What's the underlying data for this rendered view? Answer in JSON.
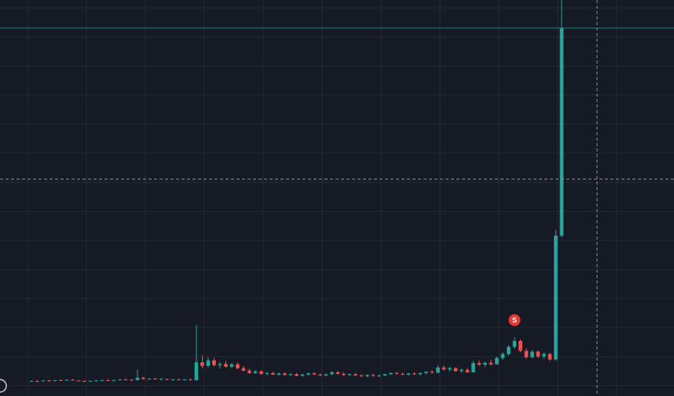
{
  "chart_data": {
    "type": "candlestick",
    "ylim": [
      0,
      100
    ],
    "up_color": "#26a69a",
    "down_color": "#ef5350",
    "annotation": "S",
    "candles": [
      [
        3.7,
        3.9,
        3.6,
        3.8
      ],
      [
        3.8,
        4.0,
        3.7,
        3.7
      ],
      [
        3.7,
        3.9,
        3.6,
        3.9
      ],
      [
        3.9,
        4.1,
        3.8,
        3.8
      ],
      [
        3.8,
        4.0,
        3.7,
        4.0
      ],
      [
        4.0,
        4.2,
        3.9,
        3.9
      ],
      [
        3.9,
        4.1,
        3.8,
        4.1
      ],
      [
        4.1,
        4.3,
        3.9,
        3.9
      ],
      [
        3.9,
        4.0,
        3.7,
        3.8
      ],
      [
        3.8,
        4.0,
        3.6,
        3.7
      ],
      [
        3.7,
        3.9,
        3.5,
        3.8
      ],
      [
        3.8,
        4.0,
        3.7,
        3.9
      ],
      [
        3.9,
        4.1,
        3.8,
        4.0
      ],
      [
        4.0,
        4.2,
        3.8,
        3.8
      ],
      [
        3.8,
        4.1,
        3.7,
        4.0
      ],
      [
        4.0,
        4.3,
        3.9,
        4.2
      ],
      [
        4.2,
        4.4,
        4.0,
        4.1
      ],
      [
        4.1,
        4.3,
        3.9,
        4.0
      ],
      [
        4.0,
        6.7,
        3.9,
        4.6
      ],
      [
        4.6,
        4.8,
        4.2,
        4.3
      ],
      [
        4.3,
        4.5,
        4.1,
        4.4
      ],
      [
        4.4,
        4.6,
        4.2,
        4.2
      ],
      [
        4.2,
        4.5,
        4.0,
        4.3
      ],
      [
        4.3,
        4.4,
        4.0,
        4.1
      ],
      [
        4.1,
        4.3,
        3.9,
        4.2
      ],
      [
        4.2,
        4.4,
        4.0,
        4.0
      ],
      [
        4.0,
        4.3,
        3.9,
        4.2
      ],
      [
        4.2,
        4.4,
        3.9,
        4.0
      ],
      [
        4.0,
        18.0,
        3.9,
        8.5
      ],
      [
        8.5,
        10.2,
        7.0,
        7.6
      ],
      [
        7.6,
        9.8,
        7.2,
        9.0
      ],
      [
        9.0,
        9.6,
        7.4,
        7.8
      ],
      [
        7.8,
        8.6,
        6.9,
        8.1
      ],
      [
        8.1,
        8.9,
        7.2,
        7.4
      ],
      [
        7.4,
        8.4,
        7.0,
        8.0
      ],
      [
        8.0,
        8.4,
        6.8,
        7.0
      ],
      [
        7.0,
        7.6,
        6.2,
        6.4
      ],
      [
        6.4,
        6.9,
        5.6,
        5.8
      ],
      [
        5.8,
        6.6,
        5.5,
        6.2
      ],
      [
        6.2,
        6.5,
        5.4,
        5.6
      ],
      [
        5.6,
        6.0,
        5.2,
        5.8
      ],
      [
        5.8,
        6.1,
        5.3,
        5.4
      ],
      [
        5.4,
        5.9,
        5.1,
        5.7
      ],
      [
        5.7,
        6.0,
        5.2,
        5.3
      ],
      [
        5.3,
        5.7,
        5.0,
        5.5
      ],
      [
        5.5,
        5.8,
        5.0,
        5.1
      ],
      [
        5.1,
        5.6,
        4.9,
        5.4
      ],
      [
        5.4,
        5.9,
        5.2,
        5.7
      ],
      [
        5.7,
        6.0,
        5.3,
        5.4
      ],
      [
        5.4,
        5.7,
        5.0,
        5.2
      ],
      [
        5.2,
        5.6,
        4.9,
        5.5
      ],
      [
        5.5,
        6.2,
        5.3,
        6.0
      ],
      [
        6.0,
        6.3,
        5.4,
        5.6
      ],
      [
        5.6,
        5.9,
        5.1,
        5.3
      ],
      [
        5.3,
        5.7,
        5.0,
        5.5
      ],
      [
        5.5,
        5.8,
        5.1,
        5.2
      ],
      [
        5.2,
        5.5,
        4.8,
        5.0
      ],
      [
        5.0,
        5.4,
        4.7,
        5.3
      ],
      [
        5.3,
        5.6,
        4.9,
        5.1
      ],
      [
        5.1,
        5.4,
        4.8,
        5.2
      ],
      [
        5.2,
        5.6,
        5.0,
        5.5
      ],
      [
        5.5,
        6.0,
        5.3,
        5.8
      ],
      [
        5.8,
        6.1,
        5.4,
        5.6
      ],
      [
        5.6,
        5.9,
        5.2,
        5.4
      ],
      [
        5.4,
        5.8,
        5.1,
        5.7
      ],
      [
        5.7,
        6.0,
        5.3,
        5.5
      ],
      [
        5.5,
        5.9,
        5.2,
        5.8
      ],
      [
        5.8,
        6.3,
        5.5,
        6.1
      ],
      [
        6.1,
        6.5,
        5.7,
        5.9
      ],
      [
        5.9,
        7.8,
        5.7,
        7.2
      ],
      [
        7.2,
        7.7,
        6.4,
        6.7
      ],
      [
        6.7,
        7.4,
        6.2,
        7.0
      ],
      [
        7.0,
        7.3,
        6.1,
        6.3
      ],
      [
        6.3,
        6.9,
        5.9,
        6.6
      ],
      [
        6.6,
        7.0,
        5.8,
        6.0
      ],
      [
        6.0,
        8.9,
        5.9,
        8.3
      ],
      [
        8.3,
        9.0,
        7.6,
        7.9
      ],
      [
        7.9,
        8.6,
        7.3,
        8.4
      ],
      [
        8.4,
        9.2,
        7.8,
        8.0
      ],
      [
        8.0,
        9.9,
        7.9,
        9.6
      ],
      [
        9.6,
        11.0,
        9.2,
        10.6
      ],
      [
        10.6,
        12.8,
        10.2,
        12.4
      ],
      [
        12.4,
        14.8,
        11.9,
        13.9
      ],
      [
        13.9,
        14.3,
        11.0,
        11.4
      ],
      [
        11.4,
        12.0,
        9.4,
        9.8
      ],
      [
        9.8,
        11.6,
        9.5,
        11.2
      ],
      [
        11.2,
        11.5,
        9.6,
        10.0
      ],
      [
        10.0,
        11.0,
        9.4,
        10.6
      ],
      [
        10.6,
        10.9,
        8.9,
        9.2
      ],
      [
        9.2,
        42.0,
        9.0,
        40.5
      ],
      [
        40.5,
        100,
        40.0,
        92.9
      ]
    ]
  }
}
